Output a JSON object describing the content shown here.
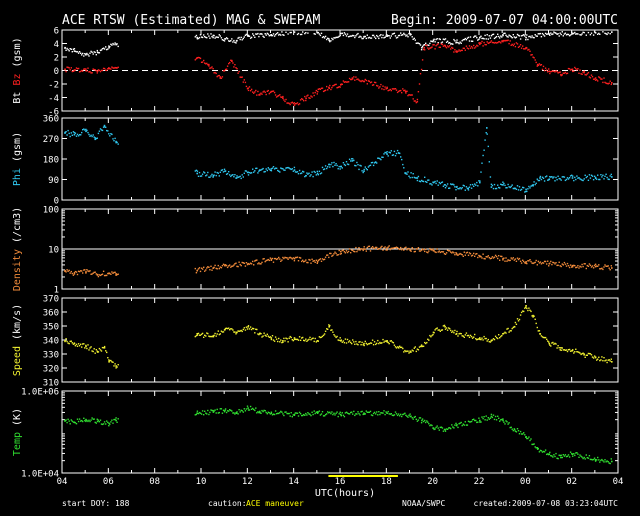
{
  "header": {
    "title": "ACE RTSW (Estimated) MAG & SWEPAM",
    "begin": "Begin: 2009-07-07 04:00:00UTC"
  },
  "footer": {
    "start_doy": "start DOY: 188",
    "caution_label": "caution:",
    "caution_text": "ACE maneuver",
    "credit": "NOAA/SWPC",
    "created": "created:2009-07-08 03:23:04UTC",
    "xlabel": "UTC(hours)"
  },
  "colors": {
    "background": "#000000",
    "axes": "#ffffff",
    "bt": "#ffffff",
    "bz": "#ff2020",
    "phi": "#30c8f0",
    "density": "#f08a3a",
    "speed": "#f0f030",
    "temp": "#30e030",
    "caution": "#ffff00"
  },
  "chart_data": {
    "type": "scatter",
    "x_axis": {
      "label": "UTC(hours)",
      "range_hours": [
        4,
        28
      ],
      "tick_labels": [
        "04",
        "06",
        "08",
        "10",
        "12",
        "14",
        "16",
        "18",
        "20",
        "22",
        "00",
        "02",
        "04"
      ]
    },
    "maneuver_interval_hours": [
      15.5,
      18.5
    ],
    "data_gap_hours": [
      6.4,
      9.7
    ],
    "panels": [
      {
        "id": "mag",
        "ylabel_parts": [
          "Bt",
          "Bz",
          "(gsm)"
        ],
        "ylim": [
          -6,
          6
        ],
        "ticks": [
          "-6",
          "-4",
          "-2",
          "0",
          "2",
          "4",
          "6"
        ],
        "tick_values": [
          -6,
          -4,
          -2,
          0,
          2,
          4,
          6
        ],
        "dashed_ref": 0,
        "series": [
          {
            "name": "Bt",
            "color": "#ffffff",
            "points": [
              [
                4.1,
                3.5
              ],
              [
                4.5,
                3.0
              ],
              [
                5.0,
                2.5
              ],
              [
                5.5,
                2.8
              ],
              [
                6.0,
                3.5
              ],
              [
                6.3,
                4.0
              ],
              [
                9.8,
                5.0
              ],
              [
                10.5,
                5.3
              ],
              [
                11.0,
                4.8
              ],
              [
                11.5,
                4.5
              ],
              [
                12.0,
                5.2
              ],
              [
                13.0,
                5.3
              ],
              [
                14.0,
                5.8
              ],
              [
                15.0,
                5.7
              ],
              [
                15.5,
                4.6
              ],
              [
                16.0,
                5.6
              ],
              [
                17.0,
                5.1
              ],
              [
                18.0,
                5.2
              ],
              [
                19.0,
                5.4
              ],
              [
                19.5,
                3.5
              ],
              [
                20.0,
                4.6
              ],
              [
                21.0,
                4.3
              ],
              [
                22.0,
                5.0
              ],
              [
                23.0,
                5.3
              ],
              [
                24.0,
                5.0
              ],
              [
                25.0,
                5.5
              ],
              [
                26.0,
                5.6
              ],
              [
                27.0,
                5.7
              ],
              [
                27.7,
                5.8
              ]
            ]
          },
          {
            "name": "Bz",
            "color": "#ff2020",
            "points": [
              [
                4.1,
                0.3
              ],
              [
                4.5,
                0.2
              ],
              [
                5.0,
                0.1
              ],
              [
                5.5,
                0.0
              ],
              [
                6.0,
                0.4
              ],
              [
                6.3,
                0.5
              ],
              [
                9.8,
                2.0
              ],
              [
                10.3,
                1.0
              ],
              [
                10.8,
                -1.0
              ],
              [
                11.3,
                1.5
              ],
              [
                12.0,
                -2.5
              ],
              [
                12.5,
                -3.5
              ],
              [
                13.0,
                -3.0
              ],
              [
                13.5,
                -4.0
              ],
              [
                14.0,
                -5.0
              ],
              [
                14.5,
                -4.0
              ],
              [
                15.0,
                -3.0
              ],
              [
                15.5,
                -2.5
              ],
              [
                16.0,
                -2.0
              ],
              [
                16.5,
                -1.0
              ],
              [
                17.0,
                -1.5
              ],
              [
                18.0,
                -2.5
              ],
              [
                18.8,
                -3.0
              ],
              [
                19.3,
                -4.5
              ],
              [
                19.6,
                3.5
              ],
              [
                20.5,
                3.8
              ],
              [
                21.0,
                3.0
              ],
              [
                22.0,
                4.0
              ],
              [
                23.0,
                4.5
              ],
              [
                24.0,
                3.5
              ],
              [
                24.5,
                1.0
              ],
              [
                25.0,
                0.0
              ],
              [
                25.5,
                -0.5
              ],
              [
                26.0,
                0.3
              ],
              [
                26.5,
                -0.2
              ],
              [
                27.0,
                -1.0
              ],
              [
                27.7,
                -1.7
              ]
            ]
          }
        ]
      },
      {
        "id": "phi",
        "ylabel_parts": [
          "Phi",
          "(gsm)"
        ],
        "ylim": [
          0,
          360
        ],
        "ticks": [
          "0",
          "90",
          "180",
          "270",
          "360"
        ],
        "tick_values": [
          0,
          90,
          180,
          270,
          360
        ],
        "series": [
          {
            "name": "Phi",
            "color": "#30c8f0",
            "points": [
              [
                4.1,
                300
              ],
              [
                4.5,
                290
              ],
              [
                5.0,
                305
              ],
              [
                5.4,
                270
              ],
              [
                5.8,
                330
              ],
              [
                6.3,
                260
              ],
              [
                9.8,
                120
              ],
              [
                10.5,
                110
              ],
              [
                11.0,
                130
              ],
              [
                11.5,
                100
              ],
              [
                12.0,
                125
              ],
              [
                12.5,
                135
              ],
              [
                13.0,
                140
              ],
              [
                14.0,
                135
              ],
              [
                14.5,
                110
              ],
              [
                15.0,
                120
              ],
              [
                15.5,
                160
              ],
              [
                16.0,
                150
              ],
              [
                16.5,
                175
              ],
              [
                17.0,
                130
              ],
              [
                17.5,
                170
              ],
              [
                18.0,
                205
              ],
              [
                18.5,
                210
              ],
              [
                18.8,
                120
              ],
              [
                19.3,
                100
              ],
              [
                20.0,
                80
              ],
              [
                20.5,
                70
              ],
              [
                21.0,
                60
              ],
              [
                21.5,
                55
              ],
              [
                22.0,
                80
              ],
              [
                22.3,
                320
              ],
              [
                22.5,
                60
              ],
              [
                23.0,
                70
              ],
              [
                23.5,
                55
              ],
              [
                24.0,
                50
              ],
              [
                24.3,
                70
              ],
              [
                24.6,
                100
              ],
              [
                25.0,
                95
              ],
              [
                26.0,
                100
              ],
              [
                27.0,
                102
              ],
              [
                27.7,
                105
              ]
            ]
          }
        ]
      },
      {
        "id": "density",
        "ylabel_parts": [
          "Density",
          "(/cm3)"
        ],
        "ylim": [
          1,
          100
        ],
        "scale": "log",
        "ticks": [
          "1",
          "10",
          "100"
        ],
        "tick_values": [
          1,
          10,
          100
        ],
        "solid_ref": 10,
        "series": [
          {
            "name": "Density",
            "color": "#f08a3a",
            "points": [
              [
                4.1,
                3.0
              ],
              [
                4.5,
                2.5
              ],
              [
                5.0,
                2.8
              ],
              [
                5.5,
                2.4
              ],
              [
                6.0,
                2.6
              ],
              [
                6.3,
                2.5
              ],
              [
                9.8,
                3.0
              ],
              [
                10.5,
                3.5
              ],
              [
                11.0,
                4.0
              ],
              [
                12.0,
                4.5
              ],
              [
                13.0,
                5.5
              ],
              [
                14.0,
                6.0
              ],
              [
                15.0,
                5.0
              ],
              [
                16.0,
                9.0
              ],
              [
                17.0,
                10.5
              ],
              [
                18.0,
                11.0
              ],
              [
                19.0,
                10.0
              ],
              [
                20.0,
                9.5
              ],
              [
                21.0,
                8.0
              ],
              [
                22.0,
                7.0
              ],
              [
                23.0,
                6.0
              ],
              [
                24.0,
                5.0
              ],
              [
                25.0,
                4.5
              ],
              [
                26.0,
                4.0
              ],
              [
                27.0,
                3.8
              ],
              [
                27.7,
                3.5
              ]
            ]
          }
        ]
      },
      {
        "id": "speed",
        "ylabel_parts": [
          "Speed",
          "(km/s)"
        ],
        "ylim": [
          310,
          370
        ],
        "ticks": [
          "310",
          "320",
          "330",
          "340",
          "350",
          "360",
          "370"
        ],
        "tick_values": [
          310,
          320,
          330,
          340,
          350,
          360,
          370
        ],
        "series": [
          {
            "name": "Speed",
            "color": "#f0f030",
            "points": [
              [
                4.1,
                340
              ],
              [
                4.5,
                338
              ],
              [
                5.0,
                336
              ],
              [
                5.5,
                332
              ],
              [
                5.8,
                335
              ],
              [
                6.0,
                325
              ],
              [
                6.3,
                322
              ],
              [
                9.8,
                345
              ],
              [
                10.5,
                343
              ],
              [
                11.0,
                348
              ],
              [
                11.5,
                346
              ],
              [
                12.0,
                350
              ],
              [
                12.5,
                345
              ],
              [
                13.0,
                342
              ],
              [
                13.5,
                340
              ],
              [
                14.0,
                342
              ],
              [
                15.0,
                340
              ],
              [
                15.5,
                350
              ],
              [
                16.0,
                340
              ],
              [
                17.0,
                338
              ],
              [
                18.0,
                340
              ],
              [
                18.5,
                335
              ],
              [
                19.0,
                332
              ],
              [
                19.5,
                336
              ],
              [
                20.0,
                346
              ],
              [
                20.5,
                350
              ],
              [
                21.0,
                345
              ],
              [
                22.0,
                342
              ],
              [
                22.5,
                340
              ],
              [
                23.0,
                345
              ],
              [
                23.5,
                350
              ],
              [
                24.0,
                365
              ],
              [
                24.3,
                358
              ],
              [
                24.6,
                345
              ],
              [
                25.0,
                338
              ],
              [
                25.5,
                335
              ],
              [
                26.0,
                333
              ],
              [
                26.5,
                330
              ],
              [
                27.0,
                328
              ],
              [
                27.7,
                325
              ]
            ]
          }
        ]
      },
      {
        "id": "temp",
        "ylabel_parts": [
          "Temp",
          "(K)"
        ],
        "ylim": [
          10000,
          1000000
        ],
        "scale": "log",
        "ticks": [
          "1.0E+04",
          "1.0E+06"
        ],
        "tick_values": [
          10000,
          1000000
        ],
        "series": [
          {
            "name": "Temp",
            "color": "#30e030",
            "points": [
              [
                4.1,
                200000
              ],
              [
                4.5,
                180000
              ],
              [
                5.0,
                210000
              ],
              [
                5.5,
                190000
              ],
              [
                6.0,
                170000
              ],
              [
                6.3,
                200000
              ],
              [
                9.8,
                300000
              ],
              [
                10.5,
                320000
              ],
              [
                11.0,
                350000
              ],
              [
                11.5,
                300000
              ],
              [
                12.0,
                400000
              ],
              [
                12.5,
                330000
              ],
              [
                13.0,
                300000
              ],
              [
                14.0,
                280000
              ],
              [
                15.0,
                300000
              ],
              [
                16.0,
                280000
              ],
              [
                17.0,
                300000
              ],
              [
                18.0,
                300000
              ],
              [
                19.0,
                250000
              ],
              [
                19.5,
                200000
              ],
              [
                20.0,
                130000
              ],
              [
                20.5,
                120000
              ],
              [
                21.0,
                150000
              ],
              [
                22.0,
                200000
              ],
              [
                22.5,
                250000
              ],
              [
                23.0,
                200000
              ],
              [
                23.5,
                120000
              ],
              [
                24.0,
                80000
              ],
              [
                24.5,
                40000
              ],
              [
                25.0,
                30000
              ],
              [
                25.5,
                25000
              ],
              [
                26.0,
                30000
              ],
              [
                27.0,
                22000
              ],
              [
                27.7,
                20000
              ]
            ]
          }
        ]
      }
    ]
  }
}
